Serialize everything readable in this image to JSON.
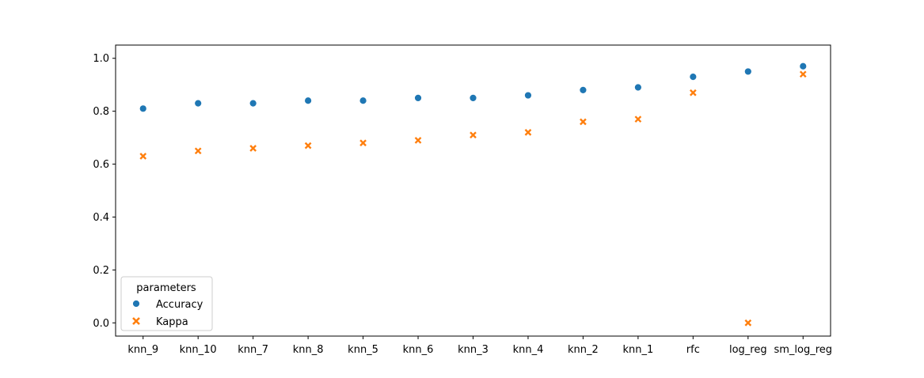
{
  "chart_data": {
    "type": "scatter",
    "categories": [
      "knn_9",
      "knn_10",
      "knn_7",
      "knn_8",
      "knn_5",
      "knn_6",
      "knn_3",
      "knn_4",
      "knn_2",
      "knn_1",
      "rfc",
      "log_reg",
      "sm_log_reg"
    ],
    "series": [
      {
        "name": "Accuracy",
        "marker": "circle",
        "color": "#1f77b4",
        "values": [
          0.81,
          0.83,
          0.83,
          0.84,
          0.84,
          0.85,
          0.85,
          0.86,
          0.88,
          0.89,
          0.93,
          0.95,
          0.97
        ]
      },
      {
        "name": "Kappa",
        "marker": "x",
        "color": "#ff7f0e",
        "values": [
          0.63,
          0.65,
          0.66,
          0.67,
          0.68,
          0.69,
          0.71,
          0.72,
          0.76,
          0.77,
          0.87,
          0.0,
          0.94
        ]
      }
    ],
    "title": "",
    "xlabel": "",
    "ylabel": "",
    "ylim": [
      -0.05,
      1.05
    ],
    "yticks": [
      0.0,
      0.2,
      0.4,
      0.6,
      0.8,
      1.0
    ],
    "ytick_labels": [
      "0.0",
      "0.2",
      "0.4",
      "0.6",
      "0.8",
      "1.0"
    ],
    "grid": false,
    "legend": {
      "title": "parameters",
      "placement": "lower-left",
      "entries": [
        "Accuracy",
        "Kappa"
      ]
    }
  }
}
